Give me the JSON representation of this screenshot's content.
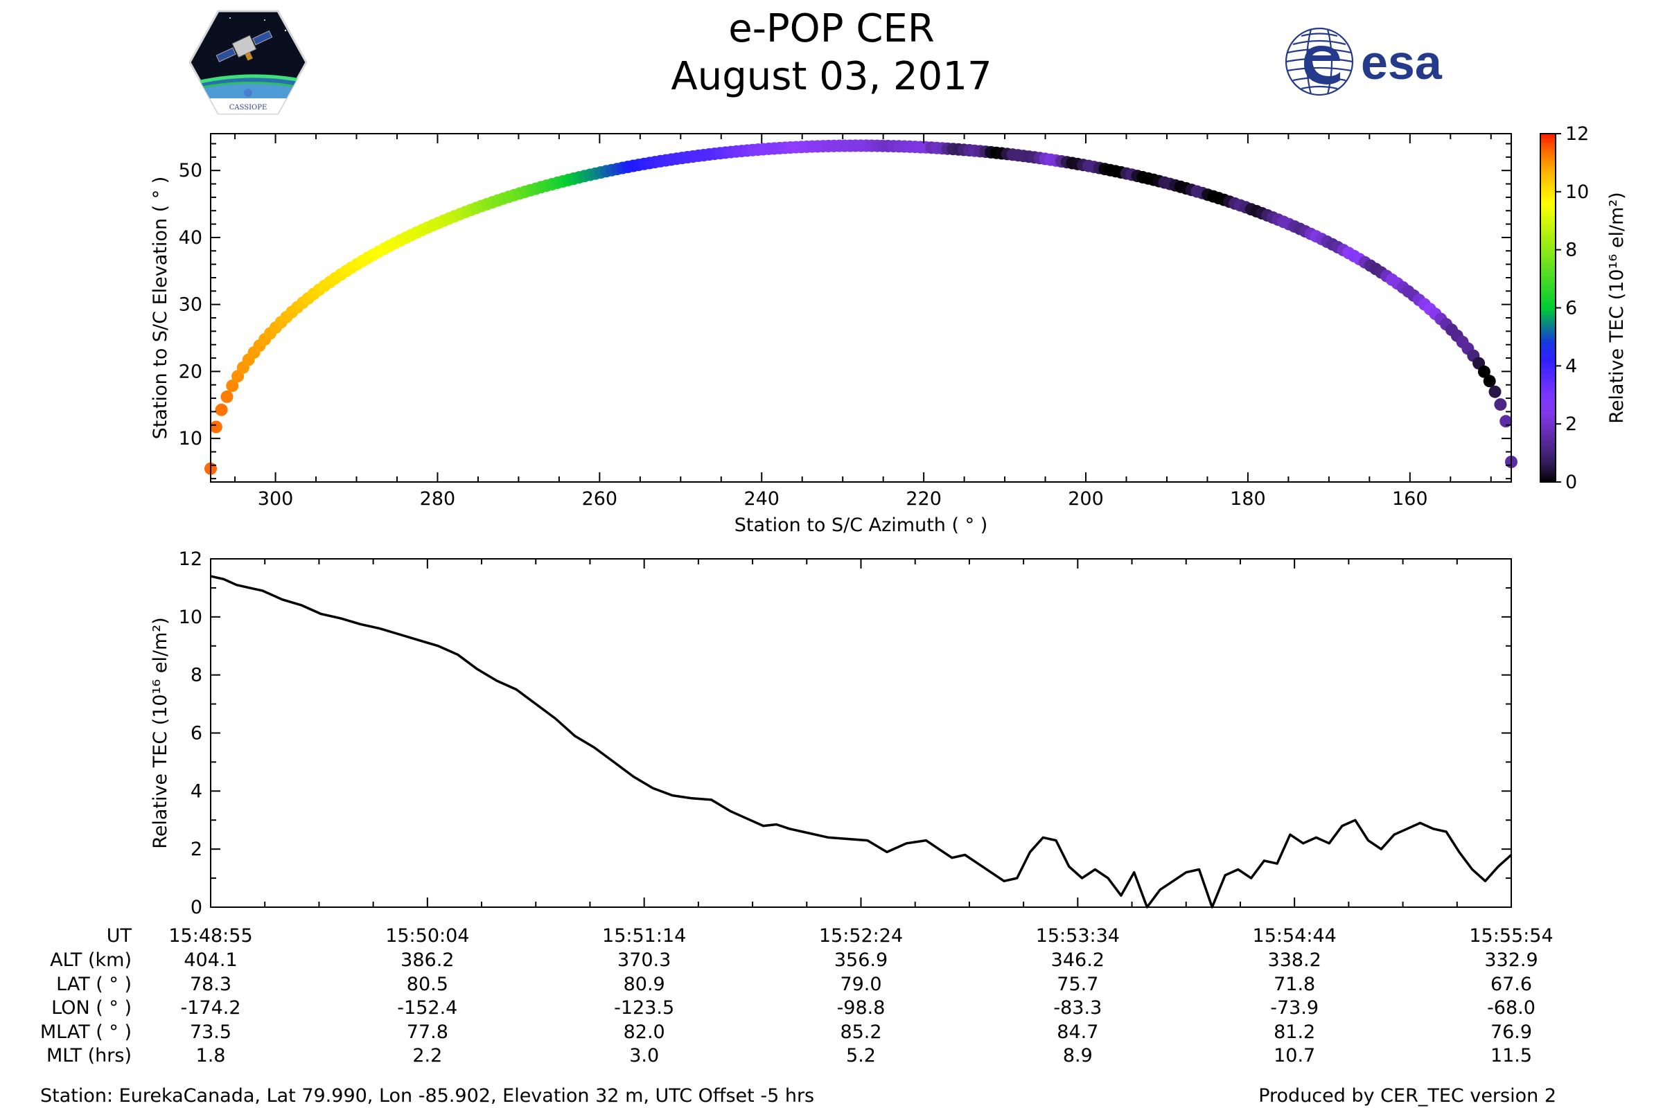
{
  "header": {
    "title": "e-POP CER",
    "date": "August 03, 2017",
    "esa_text": "esa",
    "cassiope_text": "CASSIOPE"
  },
  "colors": {
    "line": "#000000",
    "axes": "#000000",
    "colormap": [
      "#000000",
      "#3a1f63",
      "#8f3cff",
      "#1a1aff",
      "#00cc33",
      "#ffff00",
      "#ff9900",
      "#ff1a00"
    ],
    "esa_blue": "#253a8a"
  },
  "chart_data": [
    {
      "type": "scatter",
      "name": "sky-track",
      "xlabel": "Station to S/C Azimuth ( ° )",
      "ylabel": "Station to S/C Elevation ( ° )",
      "xlim": [
        308,
        147.5
      ],
      "ylim": [
        3.5,
        55.5
      ],
      "xticks": [
        300,
        280,
        260,
        240,
        220,
        200,
        180,
        160
      ],
      "yticks": [
        10,
        20,
        30,
        40,
        50
      ],
      "x_minor_step": 5,
      "y_minor_step": 2,
      "track": {
        "azimuth_start": 308,
        "azimuth_end": 147.5,
        "peak_azimuth": 228,
        "peak_elevation": 53.7,
        "start_elevation": 5.5,
        "end_elevation": 6.5
      },
      "color_by": "relative_tec",
      "colorbar": {
        "label": "Relative TEC (10¹⁶ el/m²)",
        "range": [
          0,
          12
        ],
        "ticks": [
          0,
          2,
          4,
          6,
          8,
          10,
          12
        ]
      }
    },
    {
      "type": "line",
      "name": "relative-tec-timeseries",
      "ylabel": "Relative TEC (10¹⁶ el/m²)",
      "ylim": [
        0,
        12
      ],
      "yticks": [
        0,
        2,
        4,
        6,
        8,
        10,
        12
      ],
      "y_minor_step": 1,
      "x_tick_count": 7,
      "x_minor_per_major": 4,
      "series": [
        {
          "name": "Relative TEC",
          "x_fraction": [
            0.0,
            0.01,
            0.02,
            0.03,
            0.04,
            0.055,
            0.07,
            0.085,
            0.1,
            0.115,
            0.13,
            0.145,
            0.16,
            0.175,
            0.19,
            0.205,
            0.22,
            0.235,
            0.25,
            0.265,
            0.28,
            0.295,
            0.31,
            0.325,
            0.34,
            0.355,
            0.37,
            0.385,
            0.4,
            0.415,
            0.425,
            0.435,
            0.445,
            0.455,
            0.465,
            0.475,
            0.49,
            0.505,
            0.52,
            0.535,
            0.55,
            0.56,
            0.57,
            0.58,
            0.59,
            0.6,
            0.61,
            0.62,
            0.63,
            0.64,
            0.65,
            0.66,
            0.67,
            0.68,
            0.69,
            0.7,
            0.71,
            0.72,
            0.73,
            0.74,
            0.75,
            0.76,
            0.77,
            0.78,
            0.79,
            0.8,
            0.81,
            0.82,
            0.83,
            0.84,
            0.85,
            0.86,
            0.87,
            0.88,
            0.89,
            0.9,
            0.91,
            0.92,
            0.93,
            0.94,
            0.95,
            0.96,
            0.97,
            0.98,
            0.99,
            1.0
          ],
          "values": [
            11.4,
            11.3,
            11.1,
            11.0,
            10.9,
            10.6,
            10.4,
            10.1,
            9.95,
            9.75,
            9.6,
            9.4,
            9.2,
            9.0,
            8.7,
            8.2,
            7.8,
            7.5,
            7.0,
            6.5,
            5.9,
            5.5,
            5.0,
            4.5,
            4.1,
            3.85,
            3.75,
            3.7,
            3.3,
            3.0,
            2.8,
            2.85,
            2.7,
            2.6,
            2.5,
            2.4,
            2.35,
            2.3,
            1.9,
            2.2,
            2.3,
            2.0,
            1.7,
            1.8,
            1.5,
            1.2,
            0.9,
            1.0,
            1.9,
            2.4,
            2.3,
            1.4,
            1.0,
            1.3,
            1.0,
            0.4,
            1.2,
            0.0,
            0.6,
            0.9,
            1.2,
            1.3,
            0.0,
            1.1,
            1.3,
            1.0,
            1.6,
            1.5,
            2.5,
            2.2,
            2.4,
            2.2,
            2.8,
            3.0,
            2.3,
            2.0,
            2.5,
            2.7,
            2.9,
            2.7,
            2.6,
            1.9,
            1.3,
            0.9,
            1.4,
            1.8
          ]
        }
      ]
    }
  ],
  "ephemeris": {
    "labels": [
      "UT",
      "ALT (km)",
      "LAT ( ° )",
      "LON ( ° )",
      "MLAT ( ° )",
      "MLT (hrs)"
    ],
    "columns": [
      [
        "15:48:55",
        "404.1",
        "78.3",
        "-174.2",
        "73.5",
        "1.8"
      ],
      [
        "15:50:04",
        "386.2",
        "80.5",
        "-152.4",
        "77.8",
        "2.2"
      ],
      [
        "15:51:14",
        "370.3",
        "80.9",
        "-123.5",
        "82.0",
        "3.0"
      ],
      [
        "15:52:24",
        "356.9",
        "79.0",
        "-98.8",
        "85.2",
        "5.2"
      ],
      [
        "15:53:34",
        "346.2",
        "75.7",
        "-83.3",
        "84.7",
        "8.9"
      ],
      [
        "15:54:44",
        "338.2",
        "71.8",
        "-73.9",
        "81.2",
        "10.7"
      ],
      [
        "15:55:54",
        "332.9",
        "67.6",
        "-68.0",
        "76.9",
        "11.5"
      ]
    ]
  },
  "footer": {
    "station": "Station: EurekaCanada, Lat 79.990, Lon -85.902, Elevation 32 m, UTC Offset -5 hrs",
    "produced_by": "Produced by CER_TEC version 2"
  }
}
